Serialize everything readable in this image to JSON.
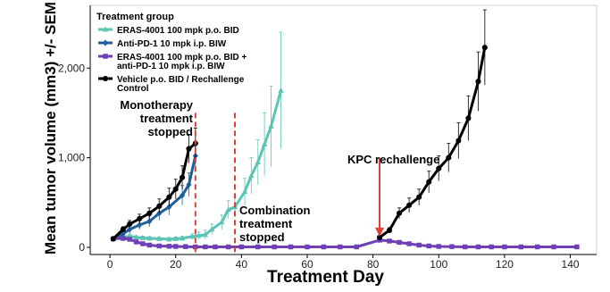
{
  "chart_data": {
    "type": "line",
    "title": "",
    "xlabel": "Treatment Day",
    "ylabel": "Mean tumor volume (mm3) +/- SEM",
    "xlim": [
      -6,
      148
    ],
    "ylim": [
      -80,
      2700
    ],
    "x_ticks": [
      0,
      20,
      40,
      60,
      80,
      100,
      120,
      140
    ],
    "y_ticks": [
      0,
      1000,
      2000
    ],
    "y_tick_labels": [
      "0",
      "1,000",
      "2,000"
    ],
    "grid": false,
    "legend": {
      "title": "Treatment group",
      "position": "top-left",
      "entries": [
        {
          "label": "ERAS-4001 100 mpk p.o. BID",
          "color": "#5bc4b5",
          "marker": "triangle"
        },
        {
          "label": "Anti-PD-1 10 mpk i.p. BIW",
          "color": "#1f5f99",
          "marker": "diamond"
        },
        {
          "label": "ERAS-4001 100 mpk p.o. BID +\nanti-PD-1 10 mpk i.p. BIW",
          "color": "#6f3fb5",
          "marker": "square"
        },
        {
          "label": "Vehicle p.o. BID / Rechallenge\nControl",
          "color": "#000000",
          "marker": "circle"
        }
      ]
    },
    "series": [
      {
        "name": "ERAS-4001 100 mpk p.o. BID",
        "color": "#5bc4b5",
        "marker": "triangle",
        "points": [
          [
            1,
            95,
            10
          ],
          [
            4,
            110,
            15
          ],
          [
            6,
            125,
            25
          ],
          [
            8,
            110,
            20
          ],
          [
            10,
            105,
            20
          ],
          [
            12,
            100,
            20
          ],
          [
            15,
            95,
            20
          ],
          [
            18,
            90,
            20
          ],
          [
            20,
            95,
            20
          ],
          [
            22,
            100,
            25
          ],
          [
            25,
            120,
            30
          ],
          [
            27,
            130,
            40
          ],
          [
            29,
            140,
            50
          ],
          [
            31,
            200,
            60
          ],
          [
            34,
            280,
            80
          ],
          [
            36,
            420,
            100
          ],
          [
            38,
            450,
            110
          ],
          [
            41,
            620,
            150
          ],
          [
            43,
            800,
            200
          ],
          [
            45,
            950,
            250
          ],
          [
            47,
            1150,
            350
          ],
          [
            49,
            1350,
            450
          ],
          [
            52,
            1750,
            650
          ]
        ]
      },
      {
        "name": "Anti-PD-1 10 mpk i.p. BIW",
        "color": "#1f5f99",
        "marker": "diamond",
        "points": [
          [
            1,
            95,
            10
          ],
          [
            4,
            150,
            25
          ],
          [
            6,
            200,
            40
          ],
          [
            9,
            250,
            50
          ],
          [
            12,
            290,
            60
          ],
          [
            15,
            380,
            80
          ],
          [
            18,
            450,
            90
          ],
          [
            22,
            580,
            110
          ],
          [
            24,
            700,
            130
          ],
          [
            26,
            1020,
            150
          ]
        ]
      },
      {
        "name": "ERAS-4001 100 mpk p.o. BID + anti-PD-1 10 mpk i.p. BIW",
        "color": "#6f3fb5",
        "marker": "square",
        "points": [
          [
            1,
            95,
            10
          ],
          [
            4,
            100,
            15
          ],
          [
            6,
            90,
            15
          ],
          [
            8,
            60,
            10
          ],
          [
            10,
            40,
            10
          ],
          [
            12,
            25,
            8
          ],
          [
            15,
            15,
            5
          ],
          [
            18,
            12,
            5
          ],
          [
            20,
            10,
            5
          ],
          [
            23,
            8,
            5
          ],
          [
            26,
            5,
            5
          ],
          [
            29,
            5,
            5
          ],
          [
            32,
            5,
            5
          ],
          [
            36,
            5,
            5
          ],
          [
            40,
            5,
            5
          ],
          [
            45,
            5,
            5
          ],
          [
            50,
            5,
            5
          ],
          [
            55,
            5,
            5
          ],
          [
            60,
            5,
            5
          ],
          [
            65,
            5,
            5
          ],
          [
            70,
            5,
            5
          ],
          [
            75,
            5,
            5
          ],
          [
            82,
            80,
            10
          ],
          [
            85,
            70,
            10
          ],
          [
            88,
            55,
            10
          ],
          [
            91,
            40,
            8
          ],
          [
            94,
            25,
            8
          ],
          [
            97,
            15,
            5
          ],
          [
            100,
            10,
            5
          ],
          [
            104,
            8,
            5
          ],
          [
            108,
            5,
            5
          ],
          [
            112,
            5,
            5
          ],
          [
            116,
            5,
            5
          ],
          [
            120,
            5,
            5
          ],
          [
            125,
            5,
            5
          ],
          [
            130,
            5,
            5
          ],
          [
            135,
            5,
            5
          ],
          [
            142,
            5,
            5
          ]
        ]
      },
      {
        "name": "Vehicle p.o. BID / Rechallenge Control",
        "color": "#000000",
        "marker": "circle",
        "segments": [
          [
            [
              1,
              95,
              10
            ],
            [
              4,
              200,
              30
            ],
            [
              6,
              260,
              40
            ],
            [
              9,
              320,
              50
            ],
            [
              12,
              380,
              60
            ],
            [
              15,
              460,
              80
            ],
            [
              18,
              560,
              100
            ],
            [
              20,
              650,
              110
            ],
            [
              22,
              780,
              130
            ],
            [
              24,
              1100,
              160
            ],
            [
              26,
              1160,
              170
            ]
          ],
          [
            [
              82,
              110,
              20
            ],
            [
              85,
              190,
              30
            ],
            [
              88,
              380,
              60
            ],
            [
              91,
              470,
              80
            ],
            [
              94,
              560,
              90
            ],
            [
              97,
              730,
              120
            ],
            [
              100,
              880,
              140
            ],
            [
              103,
              1000,
              160
            ],
            [
              106,
              1190,
              200
            ],
            [
              109,
              1440,
              250
            ],
            [
              112,
              1850,
              330
            ],
            [
              114,
              2230,
              420
            ]
          ]
        ]
      }
    ],
    "vlines": [
      {
        "x": 26,
        "color": "#e0403a",
        "style": "dashed"
      },
      {
        "x": 38,
        "color": "#e0403a",
        "style": "dashed"
      }
    ],
    "annotations": [
      {
        "text": "Monotherapy\ntreatment\nstopped"
      },
      {
        "text": "Combination\ntreatment\nstopped"
      },
      {
        "text": "KPC rechallenge"
      }
    ],
    "arrow": {
      "x": 82,
      "y_from": 1000,
      "y_to": 120,
      "color": "#e0403a"
    }
  }
}
